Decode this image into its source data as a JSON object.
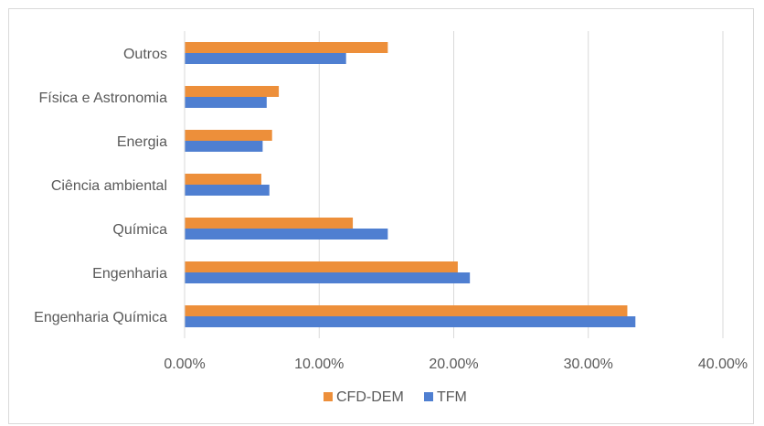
{
  "chart_data": {
    "type": "bar",
    "orientation": "horizontal",
    "categories": [
      "Engenharia Química",
      "Engenharia",
      "Química",
      "Ciência ambiental",
      "Energia",
      "Física e Astronomia",
      "Outros"
    ],
    "series": [
      {
        "name": "CFD-DEM",
        "color": "#ED8F3A",
        "values": [
          32.9,
          20.3,
          12.5,
          5.7,
          6.5,
          7.0,
          15.1
        ]
      },
      {
        "name": "TFM",
        "color": "#4F7FD1",
        "values": [
          33.5,
          21.2,
          15.1,
          6.3,
          5.8,
          6.1,
          12.0
        ]
      }
    ],
    "xlim": [
      0,
      40
    ],
    "x_ticks": [
      "0.00%",
      "10.00%",
      "20.00%",
      "30.00%",
      "40.00%"
    ],
    "grid": true,
    "legend_position": "bottom",
    "title": "",
    "xlabel": "",
    "ylabel": ""
  }
}
